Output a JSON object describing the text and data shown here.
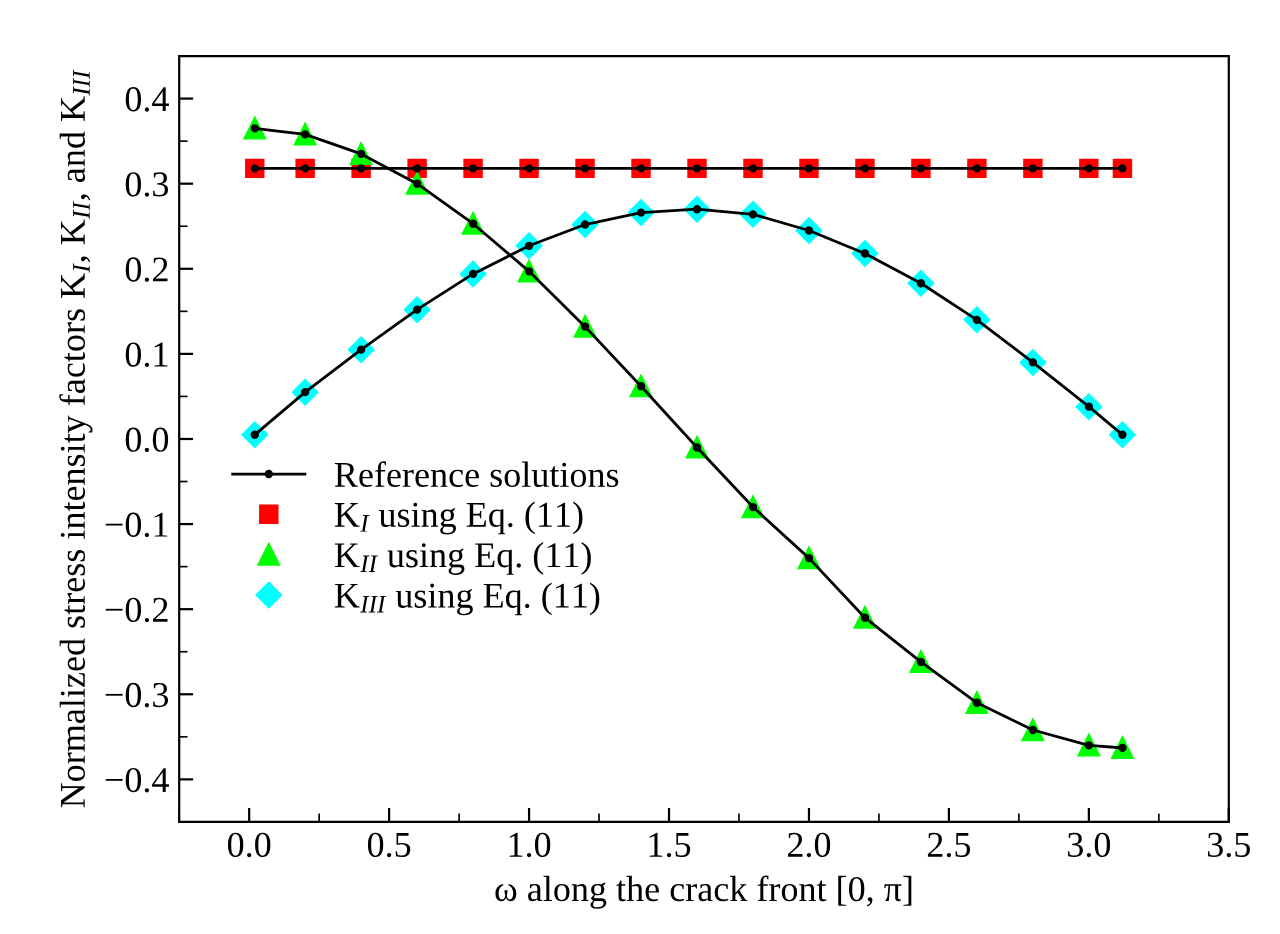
{
  "chart_data": {
    "type": "line",
    "xlabel": "ω along the crack front [0, π]",
    "ylabel": "Normalized stress intensity factors K$_{I}$, K$_{II}$, and K$_{III}$",
    "x": [
      0.02,
      0.2,
      0.4,
      0.6,
      0.8,
      1.0,
      1.2,
      1.4,
      1.6,
      1.8,
      2.0,
      2.2,
      2.4,
      2.6,
      2.8,
      3.0,
      3.12
    ],
    "series": [
      {
        "name": "Reference solutions",
        "color": "#000000",
        "marker": "circle",
        "values": [
          0.318,
          0.318,
          0.318,
          0.318,
          0.318,
          0.318,
          0.318,
          0.318,
          0.318,
          0.318,
          0.318,
          0.318,
          0.318,
          0.318,
          0.318,
          0.318,
          0.318
        ]
      },
      {
        "color": "#000000",
        "marker": "circle",
        "values": [
          0.365,
          0.358,
          0.335,
          0.3,
          0.253,
          0.197,
          0.132,
          0.062,
          -0.01,
          -0.08,
          -0.14,
          -0.21,
          -0.262,
          -0.31,
          -0.342,
          -0.36,
          -0.363
        ]
      },
      {
        "color": "#000000",
        "marker": "circle",
        "values": [
          0.005,
          0.055,
          0.105,
          0.152,
          0.194,
          0.227,
          0.252,
          0.266,
          0.27,
          0.264,
          0.245,
          0.218,
          0.183,
          0.14,
          0.09,
          0.038,
          0.005
        ]
      },
      {
        "name": "K$_{I}$ using Eq. (11)",
        "type": "scatter",
        "color": "#ff0000",
        "marker": "square",
        "values": [
          0.318,
          0.318,
          0.318,
          0.318,
          0.318,
          0.318,
          0.318,
          0.318,
          0.318,
          0.318,
          0.318,
          0.318,
          0.318,
          0.318,
          0.318,
          0.318,
          0.318
        ]
      },
      {
        "name": "K$_{II}$ using Eq. (11)",
        "type": "scatter",
        "color": "#00ff00",
        "marker": "triangle",
        "values": [
          0.365,
          0.358,
          0.335,
          0.3,
          0.253,
          0.197,
          0.132,
          0.062,
          -0.01,
          -0.08,
          -0.14,
          -0.21,
          -0.262,
          -0.31,
          -0.342,
          -0.36,
          -0.363
        ]
      },
      {
        "name": "K$_{III}$ using Eq. (11)",
        "type": "scatter",
        "color": "#00ffff",
        "marker": "diamond",
        "values": [
          0.005,
          0.055,
          0.105,
          0.152,
          0.194,
          0.227,
          0.252,
          0.266,
          0.27,
          0.264,
          0.245,
          0.218,
          0.183,
          0.14,
          0.09,
          0.038,
          0.005
        ]
      }
    ],
    "xlim": [
      -0.25,
      3.5
    ],
    "xticks": [
      {
        "value": 0,
        "label": "0.0"
      },
      0.5,
      {
        "value": 1,
        "label": "1.0"
      },
      1.5,
      {
        "value": 2,
        "label": "2.0"
      },
      2.5,
      {
        "value": 3,
        "label": "3.0"
      },
      3.5
    ],
    "ylim": [
      -0.45,
      0.45
    ],
    "yticks": [
      {
        "value": -0.4,
        "label": "−0.4"
      },
      {
        "value": -0.3,
        "label": "−0.3"
      },
      {
        "value": -0.2,
        "label": "−0.2"
      },
      {
        "value": -0.1,
        "label": "−0.1"
      },
      {
        "value": 0,
        "label": "0.0"
      },
      0.1,
      0.2,
      0.3,
      0.4
    ],
    "grid": false,
    "legend": "left"
  }
}
